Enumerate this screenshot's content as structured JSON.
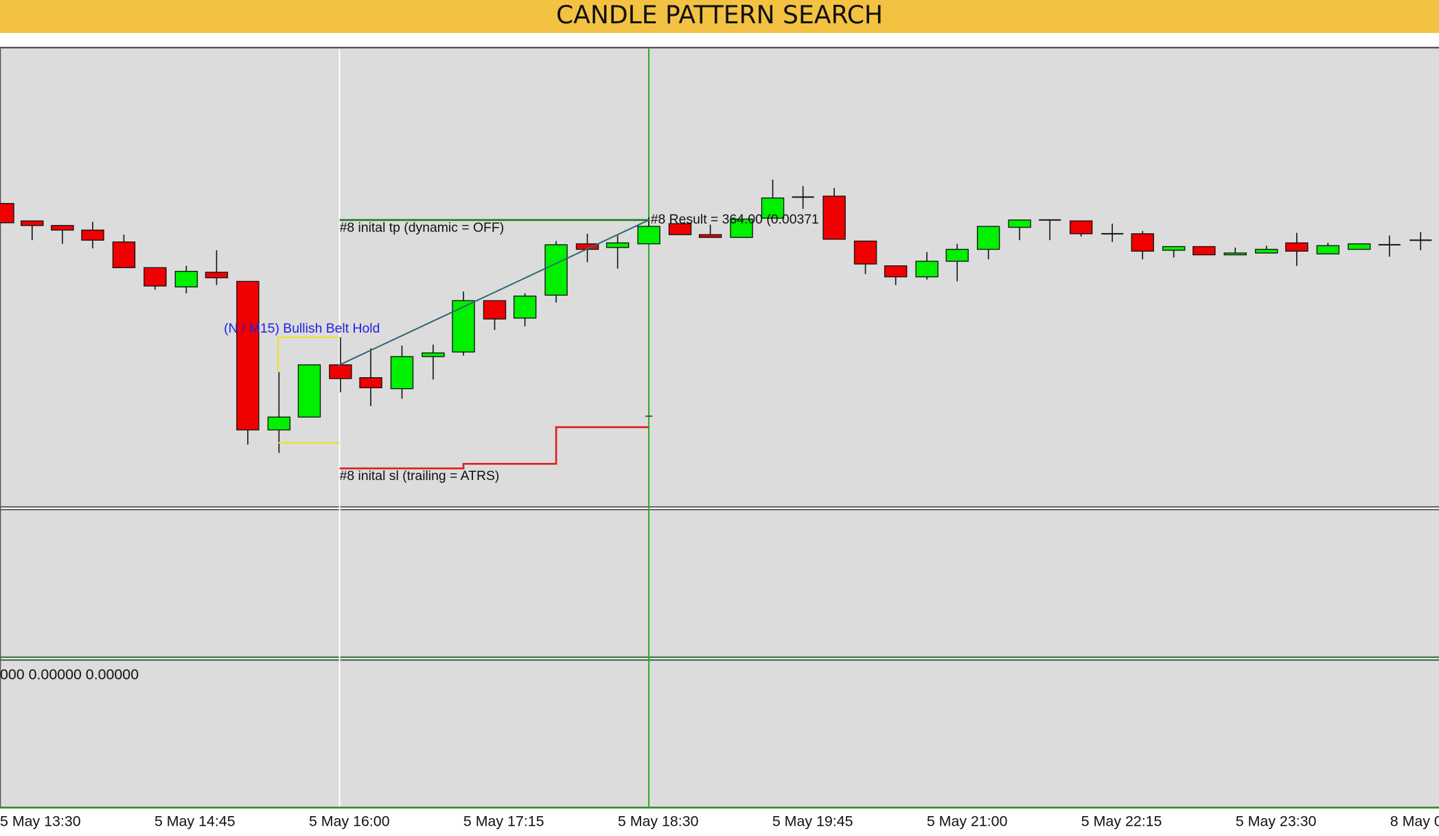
{
  "header": {
    "title": "CANDLE PATTERN SEARCH"
  },
  "chart": {
    "annotations": {
      "pattern": "(N / M15) Bullish  Belt Hold",
      "take_profit": "#8 inital tp (dynamic = OFF)",
      "result": "#8 Result = 364.00 (0.00371",
      "stop_loss": "#8 inital sl (trailing = ATRS)"
    },
    "indicator_readout": "000 0.00000 0.00000",
    "time_labels": [
      "5 May 13:30",
      "5 May 14:45",
      "5 May 16:00",
      "5 May 17:15",
      "5 May 18:30",
      "5 May 19:45",
      "5 May 21:00",
      "5 May 22:15",
      "5 May 23:30",
      "8 May 0"
    ]
  }
}
